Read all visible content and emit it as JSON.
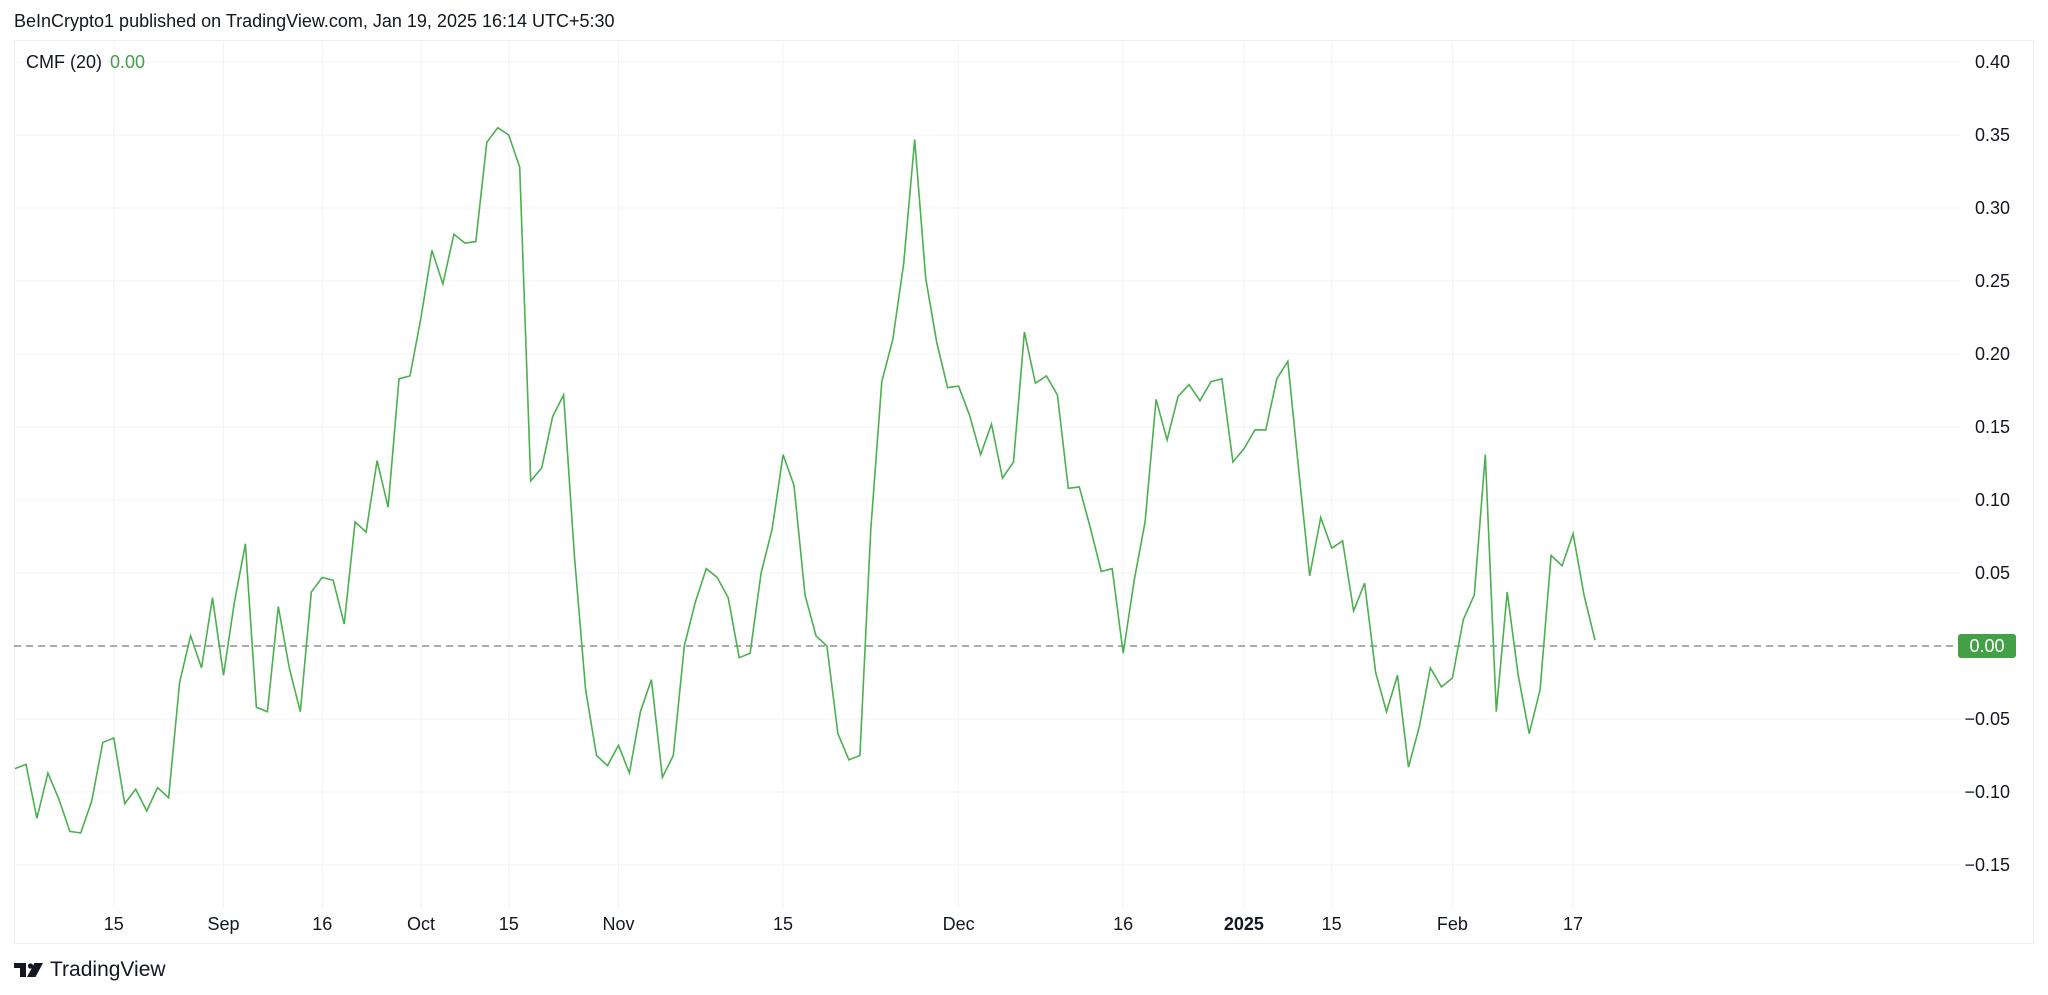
{
  "header": {
    "text": "BeInCrypto1 published on TradingView.com, Jan 19, 2025 16:14 UTC+5:30"
  },
  "legend": {
    "name": "CMF (20)",
    "value": "0.00"
  },
  "price_tag": {
    "label": "0.00",
    "color": "#43a047"
  },
  "footer": {
    "brand": "TradingView"
  },
  "colors": {
    "line": "#4caf50",
    "grid": "#f0f3fa",
    "zero_line": "#787b86",
    "axis_text": "#131722"
  },
  "chart_data": {
    "type": "line",
    "title": "",
    "xlabel": "",
    "ylabel": "",
    "ylim": [
      -0.18,
      0.42
    ],
    "yticks": [
      0.4,
      0.35,
      0.3,
      0.25,
      0.2,
      0.15,
      0.1,
      0.05,
      0.0,
      -0.05,
      -0.1,
      -0.15
    ],
    "ytick_labels": [
      "0.40",
      "0.35",
      "0.30",
      "0.25",
      "0.20",
      "0.15",
      "0.10",
      "0.05",
      "",
      "−0.05",
      "−0.10",
      "−0.15"
    ],
    "xlim": [
      0,
      156
    ],
    "xticks": [
      {
        "x": 9,
        "label": "15",
        "bold": false
      },
      {
        "x": 19,
        "label": "Sep",
        "bold": false
      },
      {
        "x": 28,
        "label": "16",
        "bold": false
      },
      {
        "x": 37,
        "label": "Oct",
        "bold": false
      },
      {
        "x": 45,
        "label": "15",
        "bold": false
      },
      {
        "x": 55,
        "label": "Nov",
        "bold": false
      },
      {
        "x": 70,
        "label": "15",
        "bold": false
      },
      {
        "x": 86,
        "label": "Dec",
        "bold": false
      },
      {
        "x": 101,
        "label": "16",
        "bold": false
      },
      {
        "x": 112,
        "label": "2025",
        "bold": true
      },
      {
        "x": 120,
        "label": "15",
        "bold": false
      },
      {
        "x": 131,
        "label": "Feb",
        "bold": false
      },
      {
        "x": 142,
        "label": "17",
        "bold": false
      }
    ],
    "reference_line": 0.0,
    "grid": true,
    "series": [
      {
        "name": "CMF (20)",
        "color": "#4caf50",
        "points": [
          [
            0,
            -0.084
          ],
          [
            1,
            -0.081
          ],
          [
            2,
            -0.118
          ],
          [
            3,
            -0.087
          ],
          [
            4,
            -0.105
          ],
          [
            5,
            -0.127
          ],
          [
            6,
            -0.128
          ],
          [
            7,
            -0.106
          ],
          [
            8,
            -0.066
          ],
          [
            9,
            -0.063
          ],
          [
            10,
            -0.108
          ],
          [
            11,
            -0.098
          ],
          [
            12,
            -0.113
          ],
          [
            13,
            -0.097
          ],
          [
            14,
            -0.104
          ],
          [
            15,
            -0.025
          ],
          [
            16,
            0.007
          ],
          [
            17,
            -0.015
          ],
          [
            18,
            0.033
          ],
          [
            19,
            -0.02
          ],
          [
            20,
            0.03
          ],
          [
            21,
            0.07
          ],
          [
            22,
            -0.042
          ],
          [
            23,
            -0.045
          ],
          [
            24,
            0.027
          ],
          [
            25,
            -0.015
          ],
          [
            26,
            -0.045
          ],
          [
            27,
            0.037
          ],
          [
            28,
            0.047
          ],
          [
            29,
            0.045
          ],
          [
            30,
            0.015
          ],
          [
            31,
            0.085
          ],
          [
            32,
            0.078
          ],
          [
            33,
            0.127
          ],
          [
            34,
            0.095
          ],
          [
            35,
            0.183
          ],
          [
            36,
            0.185
          ],
          [
            37,
            0.225
          ],
          [
            38,
            0.271
          ],
          [
            39,
            0.248
          ],
          [
            40,
            0.282
          ],
          [
            41,
            0.276
          ],
          [
            42,
            0.277
          ],
          [
            43,
            0.345
          ],
          [
            44,
            0.355
          ],
          [
            45,
            0.35
          ],
          [
            46,
            0.328
          ],
          [
            47,
            0.113
          ],
          [
            48,
            0.122
          ],
          [
            49,
            0.157
          ],
          [
            50,
            0.172
          ],
          [
            51,
            0.06
          ],
          [
            52,
            -0.03
          ],
          [
            53,
            -0.075
          ],
          [
            54,
            -0.082
          ],
          [
            55,
            -0.068
          ],
          [
            56,
            -0.087
          ],
          [
            57,
            -0.045
          ],
          [
            58,
            -0.023
          ],
          [
            59,
            -0.09
          ],
          [
            60,
            -0.075
          ],
          [
            61,
            0.0
          ],
          [
            62,
            0.03
          ],
          [
            63,
            0.053
          ],
          [
            64,
            0.047
          ],
          [
            65,
            0.033
          ],
          [
            66,
            -0.008
          ],
          [
            67,
            -0.005
          ],
          [
            68,
            0.05
          ],
          [
            69,
            0.08
          ],
          [
            70,
            0.131
          ],
          [
            71,
            0.11
          ],
          [
            72,
            0.035
          ],
          [
            73,
            0.007
          ],
          [
            74,
            0.0
          ],
          [
            75,
            -0.06
          ],
          [
            76,
            -0.078
          ],
          [
            77,
            -0.075
          ],
          [
            78,
            0.08
          ],
          [
            79,
            0.181
          ],
          [
            80,
            0.21
          ],
          [
            81,
            0.262
          ],
          [
            82,
            0.347
          ],
          [
            83,
            0.252
          ],
          [
            84,
            0.208
          ],
          [
            85,
            0.177
          ],
          [
            86,
            0.178
          ],
          [
            87,
            0.158
          ],
          [
            88,
            0.131
          ],
          [
            89,
            0.152
          ],
          [
            90,
            0.115
          ],
          [
            91,
            0.126
          ],
          [
            92,
            0.215
          ],
          [
            93,
            0.18
          ],
          [
            94,
            0.185
          ],
          [
            95,
            0.172
          ],
          [
            96,
            0.108
          ],
          [
            97,
            0.109
          ],
          [
            98,
            0.081
          ],
          [
            99,
            0.051
          ],
          [
            100,
            0.053
          ],
          [
            101,
            -0.005
          ],
          [
            102,
            0.045
          ],
          [
            103,
            0.085
          ],
          [
            104,
            0.169
          ],
          [
            105,
            0.141
          ],
          [
            106,
            0.171
          ],
          [
            107,
            0.179
          ],
          [
            108,
            0.168
          ],
          [
            109,
            0.181
          ],
          [
            110,
            0.183
          ],
          [
            111,
            0.126
          ],
          [
            112,
            0.135
          ],
          [
            113,
            0.148
          ],
          [
            114,
            0.148
          ],
          [
            115,
            0.183
          ],
          [
            116,
            0.195
          ],
          [
            117,
            0.12
          ],
          [
            118,
            0.048
          ],
          [
            119,
            0.088
          ],
          [
            120,
            0.067
          ],
          [
            121,
            0.072
          ],
          [
            122,
            0.024
          ],
          [
            123,
            0.043
          ],
          [
            124,
            -0.018
          ],
          [
            125,
            -0.045
          ],
          [
            126,
            -0.02
          ],
          [
            127,
            -0.083
          ],
          [
            128,
            -0.055
          ],
          [
            129,
            -0.015
          ],
          [
            130,
            -0.028
          ],
          [
            131,
            -0.022
          ],
          [
            132,
            0.018
          ],
          [
            133,
            0.035
          ],
          [
            134,
            0.131
          ],
          [
            135,
            -0.045
          ],
          [
            136,
            0.037
          ],
          [
            137,
            -0.02
          ],
          [
            138,
            -0.06
          ],
          [
            139,
            -0.03
          ],
          [
            140,
            0.062
          ],
          [
            141,
            0.055
          ],
          [
            142,
            0.077
          ],
          [
            143,
            0.035
          ],
          [
            144,
            0.004
          ]
        ]
      }
    ]
  }
}
